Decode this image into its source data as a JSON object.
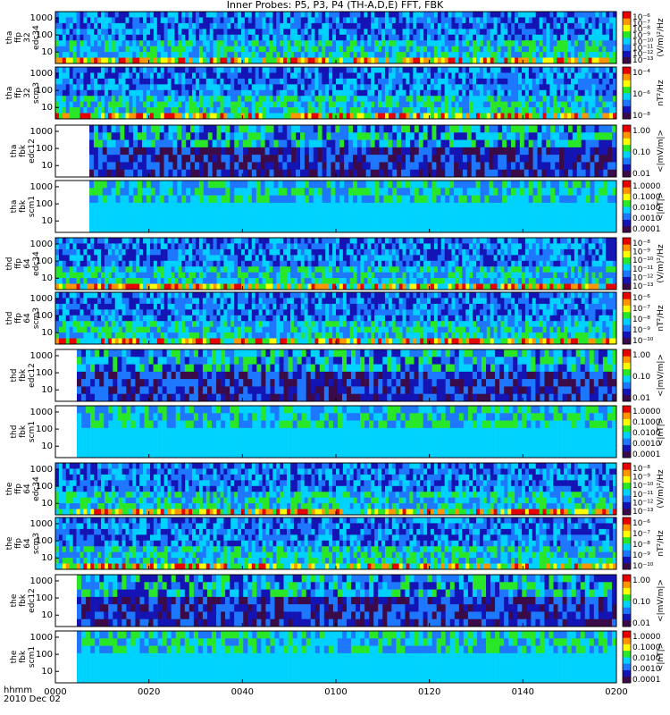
{
  "title": "Inner Probes: P5, P3, P4 (TH-A,D,E) FFT, FBK",
  "x_axis": {
    "label_line1": "hhmm",
    "label_line2": "2010 Dec 02",
    "ticks": [
      "0000",
      "0020",
      "0040",
      "0100",
      "0120",
      "0140",
      "0200"
    ]
  },
  "colors": {
    "background": "#ffffff",
    "colormap": [
      "#3b0a48",
      "#1414b4",
      "#1e78ff",
      "#00d2ff",
      "#28e628",
      "#ffff00",
      "#ff9600",
      "#e60000"
    ]
  },
  "chart_data": {
    "type": "heatmap",
    "title": "Inner Probes: P5, P3, P4 (TH-A,D,E) FFT, FBK",
    "x_range": [
      "0000",
      "0200"
    ],
    "x_ticks": [
      "0000",
      "0020",
      "0040",
      "0100",
      "0120",
      "0140",
      "0200"
    ],
    "panels": [
      {
        "ylabel": [
          "tha",
          "ffp",
          "32",
          "edc34"
        ],
        "yticks": [
          "10",
          "100",
          "1000"
        ],
        "cbar_ticks": [
          "10⁻⁶",
          "10⁻⁷",
          "10⁻⁸",
          "10⁻⁹",
          "10⁻¹⁰",
          "10⁻¹¹",
          "10⁻¹²",
          "10⁻¹³"
        ],
        "cbar_label": "(V/m)²/Hz",
        "kind": "ffp"
      },
      {
        "ylabel": [
          "tha",
          "ffp",
          "32",
          "scm3"
        ],
        "yticks": [
          "10",
          "100",
          "1000"
        ],
        "cbar_ticks": [
          "10⁻⁴",
          "10⁻⁶",
          "10⁻⁸"
        ],
        "cbar_label": "nT²/Hz",
        "kind": "ffp"
      },
      {
        "ylabel": [
          "tha",
          "fbk",
          "edc12"
        ],
        "yticks": [
          "10",
          "100",
          "1000"
        ],
        "cbar_ticks": [
          "1.00",
          "0.10",
          "0.01"
        ],
        "cbar_label": "<|mV/m|>",
        "kind": "fbk"
      },
      {
        "ylabel": [
          "tha",
          "fbk",
          "scm1"
        ],
        "yticks": [
          "10",
          "100",
          "1000"
        ],
        "cbar_ticks": [
          "1.0000",
          "0.1000",
          "0.0100",
          "0.0010",
          "0.0001"
        ],
        "cbar_label": "<|nT|>",
        "kind": "fbk"
      },
      {
        "ylabel": [
          "thd",
          "ffp",
          "64",
          "edc34"
        ],
        "yticks": [
          "10",
          "100",
          "1000"
        ],
        "cbar_ticks": [
          "10⁻⁸",
          "10⁻⁹",
          "10⁻¹⁰",
          "10⁻¹¹",
          "10⁻¹²",
          "10⁻¹³"
        ],
        "cbar_label": "(V/m)²/Hz",
        "kind": "ffp"
      },
      {
        "ylabel": [
          "thd",
          "ffp",
          "64",
          "scm3"
        ],
        "yticks": [
          "10",
          "100",
          "1000"
        ],
        "cbar_ticks": [
          "10⁻⁶",
          "10⁻⁷",
          "10⁻⁸",
          "10⁻⁹",
          "10⁻¹⁰"
        ],
        "cbar_label": "nT²/Hz",
        "kind": "ffp"
      },
      {
        "ylabel": [
          "thd",
          "fbk",
          "edc12"
        ],
        "yticks": [
          "10",
          "100",
          "1000"
        ],
        "cbar_ticks": [
          "1.00",
          "0.10",
          "0.01"
        ],
        "cbar_label": "<|mV/m|>",
        "kind": "fbk"
      },
      {
        "ylabel": [
          "thd",
          "fbk",
          "scm1"
        ],
        "yticks": [
          "10",
          "100",
          "1000"
        ],
        "cbar_ticks": [
          "1.0000",
          "0.1000",
          "0.0100",
          "0.0010",
          "0.0001"
        ],
        "cbar_label": "<|nT|>",
        "kind": "fbk"
      },
      {
        "ylabel": [
          "the",
          "ffp",
          "64",
          "edc34"
        ],
        "yticks": [
          "10",
          "100",
          "1000"
        ],
        "cbar_ticks": [
          "10⁻⁸",
          "10⁻⁹",
          "10⁻¹⁰",
          "10⁻¹¹",
          "10⁻¹²",
          "10⁻¹³"
        ],
        "cbar_label": "(V/m)²/Hz",
        "kind": "ffp"
      },
      {
        "ylabel": [
          "the",
          "ffp",
          "64",
          "scm3"
        ],
        "yticks": [
          "10",
          "100",
          "1000"
        ],
        "cbar_ticks": [
          "10⁻⁶",
          "10⁻⁷",
          "10⁻⁸",
          "10⁻⁹",
          "10⁻¹⁰"
        ],
        "cbar_label": "nT²/Hz",
        "kind": "ffp"
      },
      {
        "ylabel": [
          "the",
          "fbk",
          "edc12"
        ],
        "yticks": [
          "10",
          "100",
          "1000"
        ],
        "cbar_ticks": [
          "1.00",
          "0.10",
          "0.01"
        ],
        "cbar_label": "<|mV/m|>",
        "kind": "fbk"
      },
      {
        "ylabel": [
          "the",
          "fbk",
          "scm1"
        ],
        "yticks": [
          "10",
          "100",
          "1000"
        ],
        "cbar_ticks": [
          "1.0000",
          "0.1000",
          "0.0100",
          "0.0010",
          "0.0001"
        ],
        "cbar_label": "<|nT|>",
        "kind": "fbk"
      }
    ]
  }
}
